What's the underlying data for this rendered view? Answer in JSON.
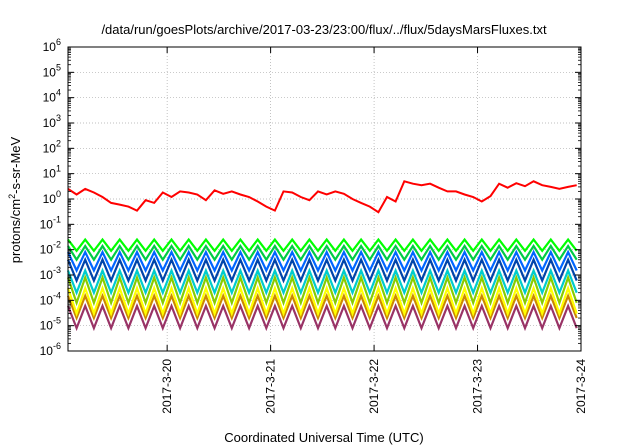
{
  "chart_data": {
    "type": "line",
    "title": "/data/run/goesPlots/archive/2017-03-23/23:00/flux/../flux/5daysMarsFluxes.txt",
    "xlabel": "Coordinated Universal Time (UTC)",
    "ylabel": {
      "base": "protons/cm",
      "sup": "2",
      "rest": "-s-sr-MeV"
    },
    "yscale": "log",
    "ylim": [
      1e-06,
      1000000.0
    ],
    "y_tick_labels": [
      {
        "base": "10",
        "exp": "-6"
      },
      {
        "base": "10",
        "exp": "-5"
      },
      {
        "base": "10",
        "exp": "-4"
      },
      {
        "base": "10",
        "exp": "-3"
      },
      {
        "base": "10",
        "exp": "-2"
      },
      {
        "base": "10",
        "exp": "-1"
      },
      {
        "base": "10",
        "exp": "0"
      },
      {
        "base": "10",
        "exp": "1"
      },
      {
        "base": "10",
        "exp": "2"
      },
      {
        "base": "10",
        "exp": "3"
      },
      {
        "base": "10",
        "exp": "4"
      },
      {
        "base": "10",
        "exp": "5"
      },
      {
        "base": "10",
        "exp": "6"
      }
    ],
    "x_tick_labels": [
      "2017-3-20",
      "2017-3-21",
      "2017-3-22",
      "2017-3-23",
      "2017-3-24"
    ],
    "xlim": [
      "2017-03-19T01:00",
      "2017-03-24T00:00"
    ],
    "grid": true,
    "x_time_points": [
      "2017-03-19T01:00",
      "2017-03-19T03:00",
      "2017-03-19T05:00",
      "2017-03-19T07:00",
      "2017-03-19T09:00",
      "2017-03-19T11:00",
      "2017-03-19T13:00",
      "2017-03-19T15:00",
      "2017-03-19T17:00",
      "2017-03-19T19:00",
      "2017-03-19T21:00",
      "2017-03-19T23:00",
      "2017-03-20T01:00",
      "2017-03-20T03:00",
      "2017-03-20T05:00",
      "2017-03-20T07:00",
      "2017-03-20T09:00",
      "2017-03-20T11:00",
      "2017-03-20T13:00",
      "2017-03-20T15:00",
      "2017-03-20T17:00",
      "2017-03-20T19:00",
      "2017-03-20T21:00",
      "2017-03-20T23:00",
      "2017-03-21T01:00",
      "2017-03-21T03:00",
      "2017-03-21T05:00",
      "2017-03-21T07:00",
      "2017-03-21T09:00",
      "2017-03-21T11:00",
      "2017-03-21T13:00",
      "2017-03-21T15:00",
      "2017-03-21T17:00",
      "2017-03-21T19:00",
      "2017-03-21T21:00",
      "2017-03-21T23:00",
      "2017-03-22T01:00",
      "2017-03-22T03:00",
      "2017-03-22T05:00",
      "2017-03-22T07:00",
      "2017-03-22T09:00",
      "2017-03-22T11:00",
      "2017-03-22T13:00",
      "2017-03-22T15:00",
      "2017-03-22T17:00",
      "2017-03-22T19:00",
      "2017-03-22T21:00",
      "2017-03-22T23:00",
      "2017-03-23T01:00",
      "2017-03-23T03:00",
      "2017-03-23T05:00",
      "2017-03-23T07:00",
      "2017-03-23T09:00",
      "2017-03-23T11:00",
      "2017-03-23T13:00",
      "2017-03-23T15:00",
      "2017-03-23T17:00",
      "2017-03-23T19:00",
      "2017-03-23T21:00",
      "2017-03-23T23:00"
    ],
    "x_sawtooth_points": [
      "2017-03-19T01:00",
      "2017-03-19T03:00",
      "2017-03-19T05:00",
      "2017-03-19T07:00",
      "2017-03-19T09:00",
      "2017-03-19T11:00",
      "2017-03-19T13:00",
      "2017-03-19T15:00",
      "2017-03-19T17:00",
      "2017-03-19T19:00",
      "2017-03-19T21:00",
      "2017-03-19T23:00",
      "2017-03-20T01:00",
      "2017-03-20T03:00",
      "2017-03-20T05:00",
      "2017-03-20T07:00",
      "2017-03-20T09:00",
      "2017-03-20T11:00",
      "2017-03-20T13:00",
      "2017-03-20T15:00",
      "2017-03-20T17:00",
      "2017-03-20T19:00",
      "2017-03-20T21:00",
      "2017-03-20T23:00",
      "2017-03-21T01:00",
      "2017-03-21T03:00",
      "2017-03-21T05:00",
      "2017-03-21T07:00",
      "2017-03-21T09:00",
      "2017-03-21T11:00",
      "2017-03-21T13:00",
      "2017-03-21T15:00",
      "2017-03-21T17:00",
      "2017-03-21T19:00",
      "2017-03-21T21:00",
      "2017-03-21T23:00",
      "2017-03-22T01:00",
      "2017-03-22T03:00",
      "2017-03-22T05:00",
      "2017-03-22T07:00",
      "2017-03-22T09:00",
      "2017-03-22T11:00",
      "2017-03-22T13:00",
      "2017-03-22T15:00",
      "2017-03-22T17:00",
      "2017-03-22T19:00",
      "2017-03-22T21:00",
      "2017-03-22T23:00",
      "2017-03-23T01:00",
      "2017-03-23T03:00",
      "2017-03-23T05:00",
      "2017-03-23T07:00",
      "2017-03-23T09:00",
      "2017-03-23T11:00",
      "2017-03-23T13:00",
      "2017-03-23T15:00",
      "2017-03-23T17:00",
      "2017-03-23T19:00",
      "2017-03-23T21:00",
      "2017-03-23T23:00"
    ],
    "series": [
      {
        "color": "#ff0000",
        "sawtooth": false,
        "values": [
          2.5,
          1.5,
          2.5,
          1.8,
          1.2,
          0.7,
          0.6,
          0.5,
          0.35,
          0.9,
          0.7,
          1.8,
          1.2,
          2.0,
          1.8,
          1.5,
          0.9,
          2.2,
          1.6,
          2.0,
          1.5,
          1.2,
          0.8,
          0.5,
          0.35,
          2.0,
          1.8,
          1.2,
          0.9,
          2.0,
          1.5,
          2.0,
          1.6,
          1.0,
          0.7,
          0.5,
          0.3,
          1.2,
          0.8,
          5.0,
          4.0,
          3.5,
          4.0,
          2.8,
          2.0,
          2.0,
          1.5,
          1.2,
          0.8,
          1.3,
          4.0,
          2.8,
          4.2,
          3.2,
          5.0,
          3.5,
          3.0,
          2.5,
          3.0,
          3.5
        ]
      },
      {
        "color": "#00ff00",
        "sawtooth": true,
        "low": 0.009,
        "high": 0.025
      },
      {
        "color": "#00cc44",
        "sawtooth": true,
        "low": 0.004,
        "high": 0.014
      },
      {
        "color": "#0066ff",
        "sawtooth": true,
        "low": 0.0015,
        "high": 0.008
      },
      {
        "color": "#0044aa",
        "sawtooth": true,
        "low": 0.0006,
        "high": 0.004
      },
      {
        "color": "#00cccc",
        "sawtooth": true,
        "low": 0.0002,
        "high": 0.0015
      },
      {
        "color": "#88cc00",
        "sawtooth": true,
        "low": 8e-05,
        "high": 0.0008
      },
      {
        "color": "#ffff00",
        "sawtooth": true,
        "low": 3e-05,
        "high": 0.0003
      },
      {
        "color": "#cc8800",
        "sawtooth": true,
        "low": 2e-05,
        "high": 0.00015
      },
      {
        "color": "#993366",
        "sawtooth": true,
        "low": 8e-06,
        "high": 6e-05
      }
    ]
  }
}
